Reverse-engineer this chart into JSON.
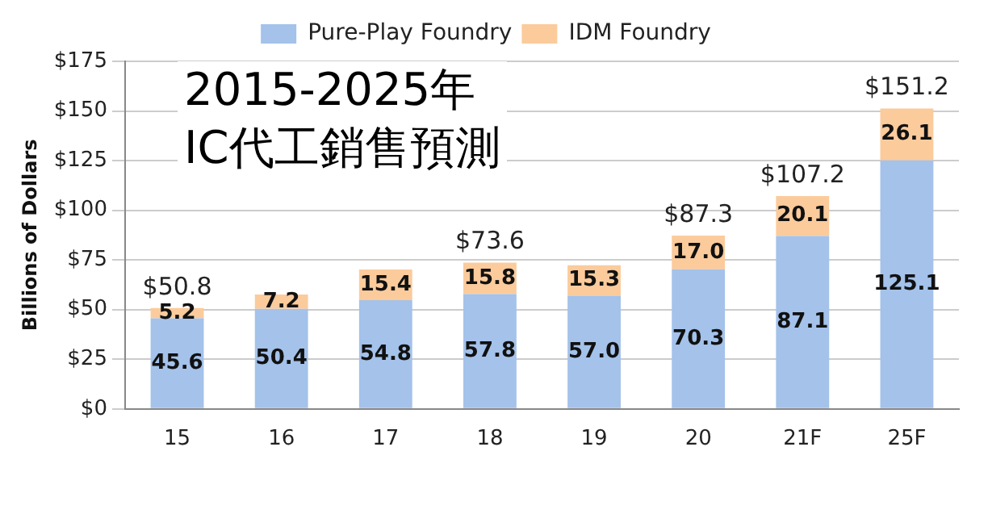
{
  "chart_data": {
    "type": "bar",
    "title": "2015-2025年\nIC代工銷售預測",
    "ylabel": "Billions of Dollars",
    "categories": [
      "15",
      "16",
      "17",
      "18",
      "19",
      "20",
      "21F",
      "25F"
    ],
    "stacked": true,
    "grid": "y",
    "legend": "top",
    "ylim": [
      0,
      175
    ],
    "yticks": [
      {
        "value": 0,
        "label": "$0"
      },
      {
        "value": 25,
        "label": "$25"
      },
      {
        "value": 50,
        "label": "$50"
      },
      {
        "value": 75,
        "label": "$75"
      },
      {
        "value": 100,
        "label": "$100"
      },
      {
        "value": 125,
        "label": "$125"
      },
      {
        "value": 150,
        "label": "$150"
      },
      {
        "value": 175,
        "label": "$175"
      }
    ],
    "totals": [
      "$50.8",
      null,
      null,
      "$73.6",
      null,
      "$87.3",
      "$107.2",
      "$151.2"
    ],
    "series": [
      {
        "name": "Pure-Play Foundry",
        "color": "#a4c2ea",
        "values": [
          45.6,
          50.4,
          54.8,
          57.8,
          57.0,
          70.3,
          87.1,
          125.1
        ],
        "value_labels": [
          "45.6",
          "50.4",
          "54.8",
          "57.8",
          "57.0",
          "70.3",
          "87.1",
          "125.1"
        ]
      },
      {
        "name": "IDM Foundry",
        "color": "#fbcb9c",
        "values": [
          5.2,
          7.2,
          15.4,
          15.8,
          15.3,
          17.0,
          20.1,
          26.1
        ],
        "value_labels": [
          "5.2",
          "7.2",
          "15.4",
          "15.8",
          "15.3",
          "17.0",
          "20.1",
          "26.1"
        ]
      }
    ]
  }
}
